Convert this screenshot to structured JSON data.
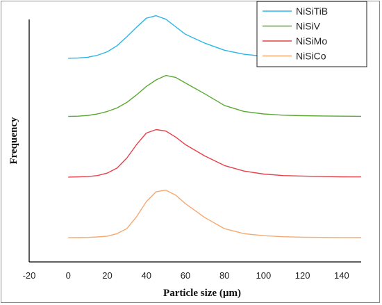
{
  "chart_data": {
    "type": "line",
    "xlabel": "Particle size (µm)",
    "ylabel": "Frequency",
    "xlim": [
      -20,
      150
    ],
    "x_ticks": [
      -20,
      0,
      20,
      40,
      60,
      80,
      100,
      120,
      140
    ],
    "y_ticks_shown": false,
    "grid": false,
    "legend_position": "top-right",
    "x": [
      0,
      5,
      10,
      15,
      20,
      25,
      30,
      35,
      40,
      45,
      50,
      55,
      60,
      70,
      80,
      90,
      100,
      110,
      120,
      130,
      140,
      150
    ],
    "series": [
      {
        "name": "NiSiTiB",
        "color": "#29b6e8",
        "baseline": 0.84,
        "values": [
          0,
          0.5,
          2,
          6,
          13,
          25,
          43,
          62,
          80,
          85,
          78,
          63,
          48,
          30,
          16,
          8,
          4,
          2,
          1,
          0.5,
          0.3,
          0.2
        ]
      },
      {
        "name": "NiSiV",
        "color": "#5aa832",
        "baseline": 0.6,
        "values": [
          0,
          0.5,
          2,
          5,
          10,
          17,
          28,
          43,
          60,
          73,
          82,
          78,
          67,
          45,
          22,
          10,
          5,
          2.5,
          1.5,
          1,
          0.5,
          0.3
        ]
      },
      {
        "name": "NiSiMo",
        "color": "#e8404a",
        "baseline": 0.35,
        "values": [
          0,
          0.3,
          1,
          3,
          8,
          18,
          38,
          65,
          88,
          95,
          92,
          80,
          65,
          42,
          23,
          12,
          6,
          3,
          2,
          1,
          0.5,
          0.3
        ]
      },
      {
        "name": "NiSiCo",
        "color": "#f5a870",
        "baseline": 0.1,
        "values": [
          0,
          0.2,
          0.5,
          1.5,
          3,
          8,
          18,
          42,
          72,
          92,
          95,
          85,
          68,
          40,
          18,
          8,
          4,
          2,
          1,
          0.5,
          0.3,
          0.2
        ]
      }
    ]
  }
}
